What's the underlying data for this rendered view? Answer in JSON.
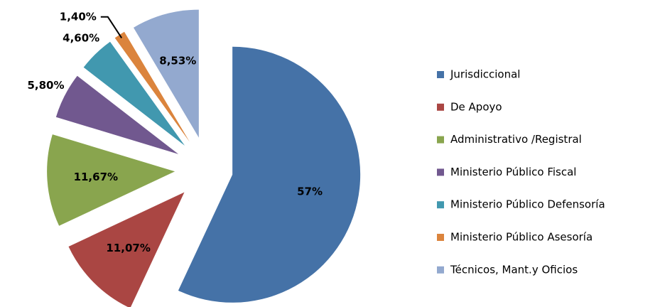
{
  "chart_data": {
    "type": "pie",
    "categories": [
      "Jurisdiccional",
      "De Apoyo",
      "Administrativo /Registral",
      "Ministerio Público Fiscal",
      "Ministerio Público Defensoría",
      "Ministerio Público Asesoría",
      "Técnicos, Mant.y Oficios"
    ],
    "values": [
      57,
      11.07,
      11.67,
      5.8,
      4.6,
      1.4,
      8.53
    ],
    "value_labels": [
      "57%",
      "11,07%",
      "11,67%",
      "5,80%",
      "4,60%",
      "1,40%",
      "8,53%"
    ],
    "colors": [
      "#4572a7",
      "#aa4643",
      "#89a54e",
      "#71588f",
      "#4198af",
      "#db843d",
      "#93a9cf"
    ],
    "legend": "right"
  }
}
